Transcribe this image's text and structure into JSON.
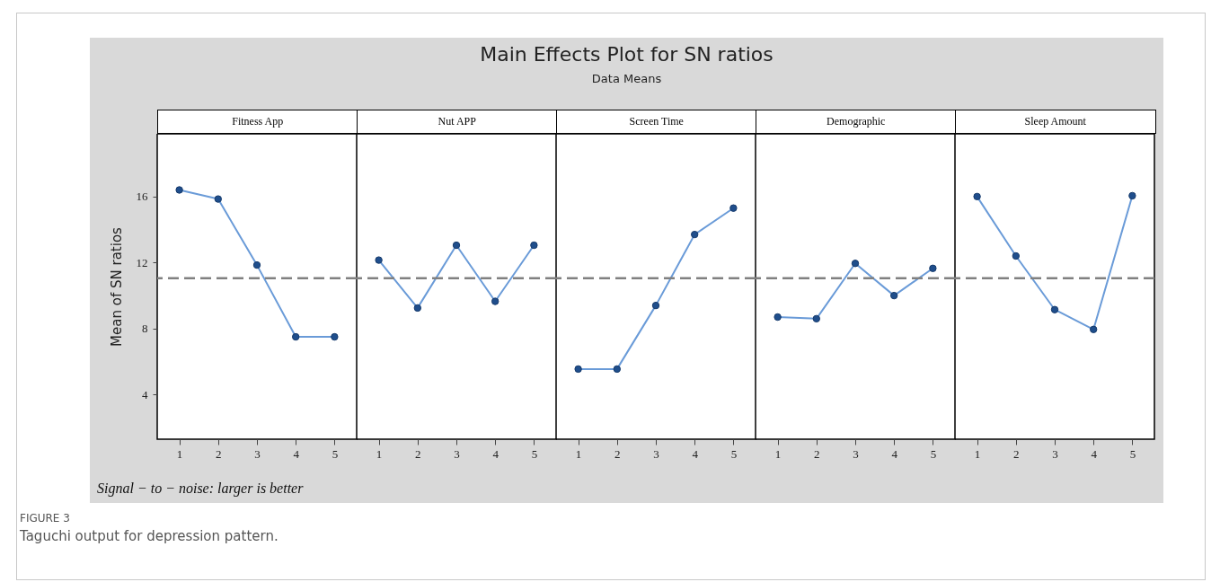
{
  "chart_data": [
    {
      "type": "other",
      "title": "Main Effects Plot for SN ratios",
      "subtitle": "Data Means",
      "annotations": [
        "Signal − to − noise: larger is better",
        "FIGURE 3",
        "Taguchi output for depression pattern."
      ]
    },
    {
      "type": "line",
      "title": "Fitness App",
      "ylabel": "Mean of SN ratios",
      "categories": [
        "1",
        "2",
        "3",
        "4",
        "5"
      ],
      "series": [
        {
          "color": "#6a9bd8",
          "values": [
            16.4,
            15.85,
            11.85,
            7.5,
            7.5
          ]
        }
      ],
      "ylim": [
        1.3,
        19.8
      ],
      "yticks": [
        4,
        8,
        12,
        16
      ],
      "marker": "circle",
      "ref_lines": [
        {
          "axis": "y",
          "value": 11.05,
          "color": "#808080",
          "line_style": "dashed"
        }
      ]
    },
    {
      "type": "line",
      "title": "Nut APP",
      "categories": [
        "1",
        "2",
        "3",
        "4",
        "5"
      ],
      "series": [
        {
          "color": "#6a9bd8",
          "values": [
            12.15,
            9.25,
            13.05,
            9.65,
            13.05
          ]
        }
      ],
      "ylim": [
        1.3,
        19.8
      ],
      "yticks": [
        4,
        8,
        12,
        16
      ],
      "tick_labels": "x",
      "marker": "circle",
      "ref_lines": [
        {
          "axis": "y",
          "value": 11.05,
          "color": "#808080",
          "line_style": "dashed"
        }
      ]
    },
    {
      "type": "line",
      "title": "Screen Time",
      "categories": [
        "1",
        "2",
        "3",
        "4",
        "5"
      ],
      "series": [
        {
          "color": "#6a9bd8",
          "values": [
            5.55,
            5.55,
            9.4,
            13.7,
            15.3
          ]
        }
      ],
      "ylim": [
        1.3,
        19.8
      ],
      "yticks": [
        4,
        8,
        12,
        16
      ],
      "tick_labels": "x",
      "marker": "circle",
      "ref_lines": [
        {
          "axis": "y",
          "value": 11.05,
          "color": "#808080",
          "line_style": "dashed"
        }
      ]
    },
    {
      "type": "line",
      "title": "Demographic",
      "categories": [
        "1",
        "2",
        "3",
        "4",
        "5"
      ],
      "series": [
        {
          "color": "#6a9bd8",
          "values": [
            8.7,
            8.6,
            11.95,
            10.0,
            11.65
          ]
        }
      ],
      "ylim": [
        1.3,
        19.8
      ],
      "yticks": [
        4,
        8,
        12,
        16
      ],
      "tick_labels": "x",
      "marker": "circle",
      "ref_lines": [
        {
          "axis": "y",
          "value": 11.05,
          "color": "#808080",
          "line_style": "dashed"
        }
      ]
    },
    {
      "type": "line",
      "title": "Sleep Amount",
      "categories": [
        "1",
        "2",
        "3",
        "4",
        "5"
      ],
      "series": [
        {
          "color": "#6a9bd8",
          "values": [
            16.0,
            12.4,
            9.15,
            7.95,
            16.05
          ]
        }
      ],
      "ylim": [
        1.3,
        19.8
      ],
      "yticks": [
        4,
        8,
        12,
        16
      ],
      "tick_labels": "x",
      "marker": "circle",
      "ref_lines": [
        {
          "axis": "y",
          "value": 11.05,
          "color": "#808080",
          "line_style": "dashed"
        }
      ]
    }
  ]
}
